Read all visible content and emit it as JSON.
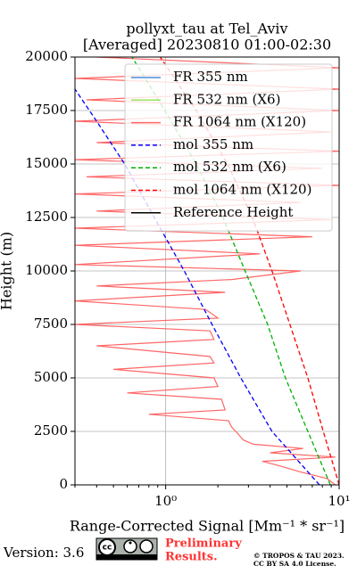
{
  "chart_data": {
    "type": "line",
    "title": [
      "pollyxt_tau at Tel_Aviv",
      "[Averaged] 20230810 01:00-02:30"
    ],
    "x_label": "Range-Corrected Signal [Mm⁻¹ * sr⁻¹]",
    "y_label": "Height (m)",
    "xscale": "log",
    "xlim": [
      0.3,
      10
    ],
    "ylim": [
      0,
      20000
    ],
    "xticks": [
      {
        "value": 1,
        "label": "10⁰"
      },
      {
        "value": 10,
        "label": "10¹"
      }
    ],
    "xminorticks": [
      0.3,
      0.4,
      0.5,
      0.6,
      0.7,
      0.8,
      0.9,
      2,
      3,
      4,
      5,
      6,
      7,
      8,
      9
    ],
    "yticks": [
      0,
      2500,
      5000,
      7500,
      10000,
      12500,
      15000,
      17500,
      20000
    ],
    "grid": true,
    "legend": "upper right",
    "series": [
      {
        "name": "FR 355 nm",
        "color": "#4a8fe0",
        "dash": false,
        "x": [],
        "y": []
      },
      {
        "name": "FR 532 nm (X6)",
        "color": "#9be35b",
        "dash": false,
        "x": [],
        "y": []
      },
      {
        "name": "FR 1064 nm (X120)",
        "color": "#ff6666",
        "dash": false,
        "x": [
          9.5,
          8.5,
          6.0,
          4.5,
          3.6,
          9.5,
          4.0,
          6.2,
          3.2,
          2.8,
          2.6,
          2.4,
          2.3,
          0.8,
          2.2,
          2.1,
          0.6,
          2.0,
          1.9,
          0.5,
          1.9,
          1.8,
          0.4,
          1.9,
          1.8,
          0.3,
          2.0,
          1.7,
          0.3,
          2.2,
          0.4,
          2.4,
          6.0,
          0.3,
          3.5,
          0.3,
          7.0,
          0.3,
          9.0,
          0.4,
          6.0,
          0.3,
          10,
          0.35,
          8,
          0.3,
          10,
          0.4,
          9,
          0.3,
          10,
          0.35,
          10,
          0.3,
          10,
          0.4
        ],
        "y": [
          0,
          300,
          600,
          900,
          1100,
          1300,
          1500,
          1700,
          1900,
          2100,
          2400,
          2700,
          3000,
          3300,
          3500,
          4000,
          4300,
          4600,
          5000,
          5400,
          5700,
          6000,
          6500,
          6800,
          7200,
          7500,
          7800,
          8200,
          8600,
          9000,
          9300,
          9600,
          10000,
          10300,
          10800,
          11200,
          11600,
          12000,
          12400,
          12800,
          13200,
          13600,
          14000,
          14400,
          14800,
          15200,
          15600,
          16000,
          16500,
          17000,
          17500,
          18000,
          18500,
          19000,
          19500,
          20000
        ]
      },
      {
        "name": "mol 355 nm",
        "color": "#0000ff",
        "dash": true,
        "x": [
          7.7,
          4.1,
          2.71,
          1.85,
          1.28,
          0.86,
          0.58,
          0.4,
          0.3
        ],
        "y": [
          0,
          2500,
          5000,
          7500,
          10000,
          12500,
          15000,
          17000,
          18500
        ]
      },
      {
        "name": "mol 532 nm (X6)",
        "color": "#00b000",
        "dash": true,
        "x": [
          8.9,
          6.6,
          4.9,
          3.87,
          2.87,
          2.14,
          1.5,
          0.99,
          0.64
        ],
        "y": [
          0,
          2500,
          5000,
          7500,
          10000,
          12500,
          15000,
          17500,
          20000
        ]
      },
      {
        "name": "mol 1064 nm (X120)",
        "color": "#ff0000",
        "dash": true,
        "x": [
          10,
          8.1,
          6.6,
          5.2,
          4.1,
          3.16,
          2.27,
          1.5,
          0.93
        ],
        "y": [
          0,
          2500,
          5000,
          7500,
          10000,
          12500,
          15000,
          17500,
          20000
        ]
      },
      {
        "name": "Reference Height",
        "color": "#000000",
        "dash": false,
        "x": [],
        "y": []
      }
    ]
  },
  "footer": {
    "version": "Version: 3.6",
    "preliminary": [
      "Preliminary",
      "Results."
    ],
    "copyright": [
      "© TROPOS & TAU 2023.",
      "CC BY SA 4.0 License."
    ]
  }
}
